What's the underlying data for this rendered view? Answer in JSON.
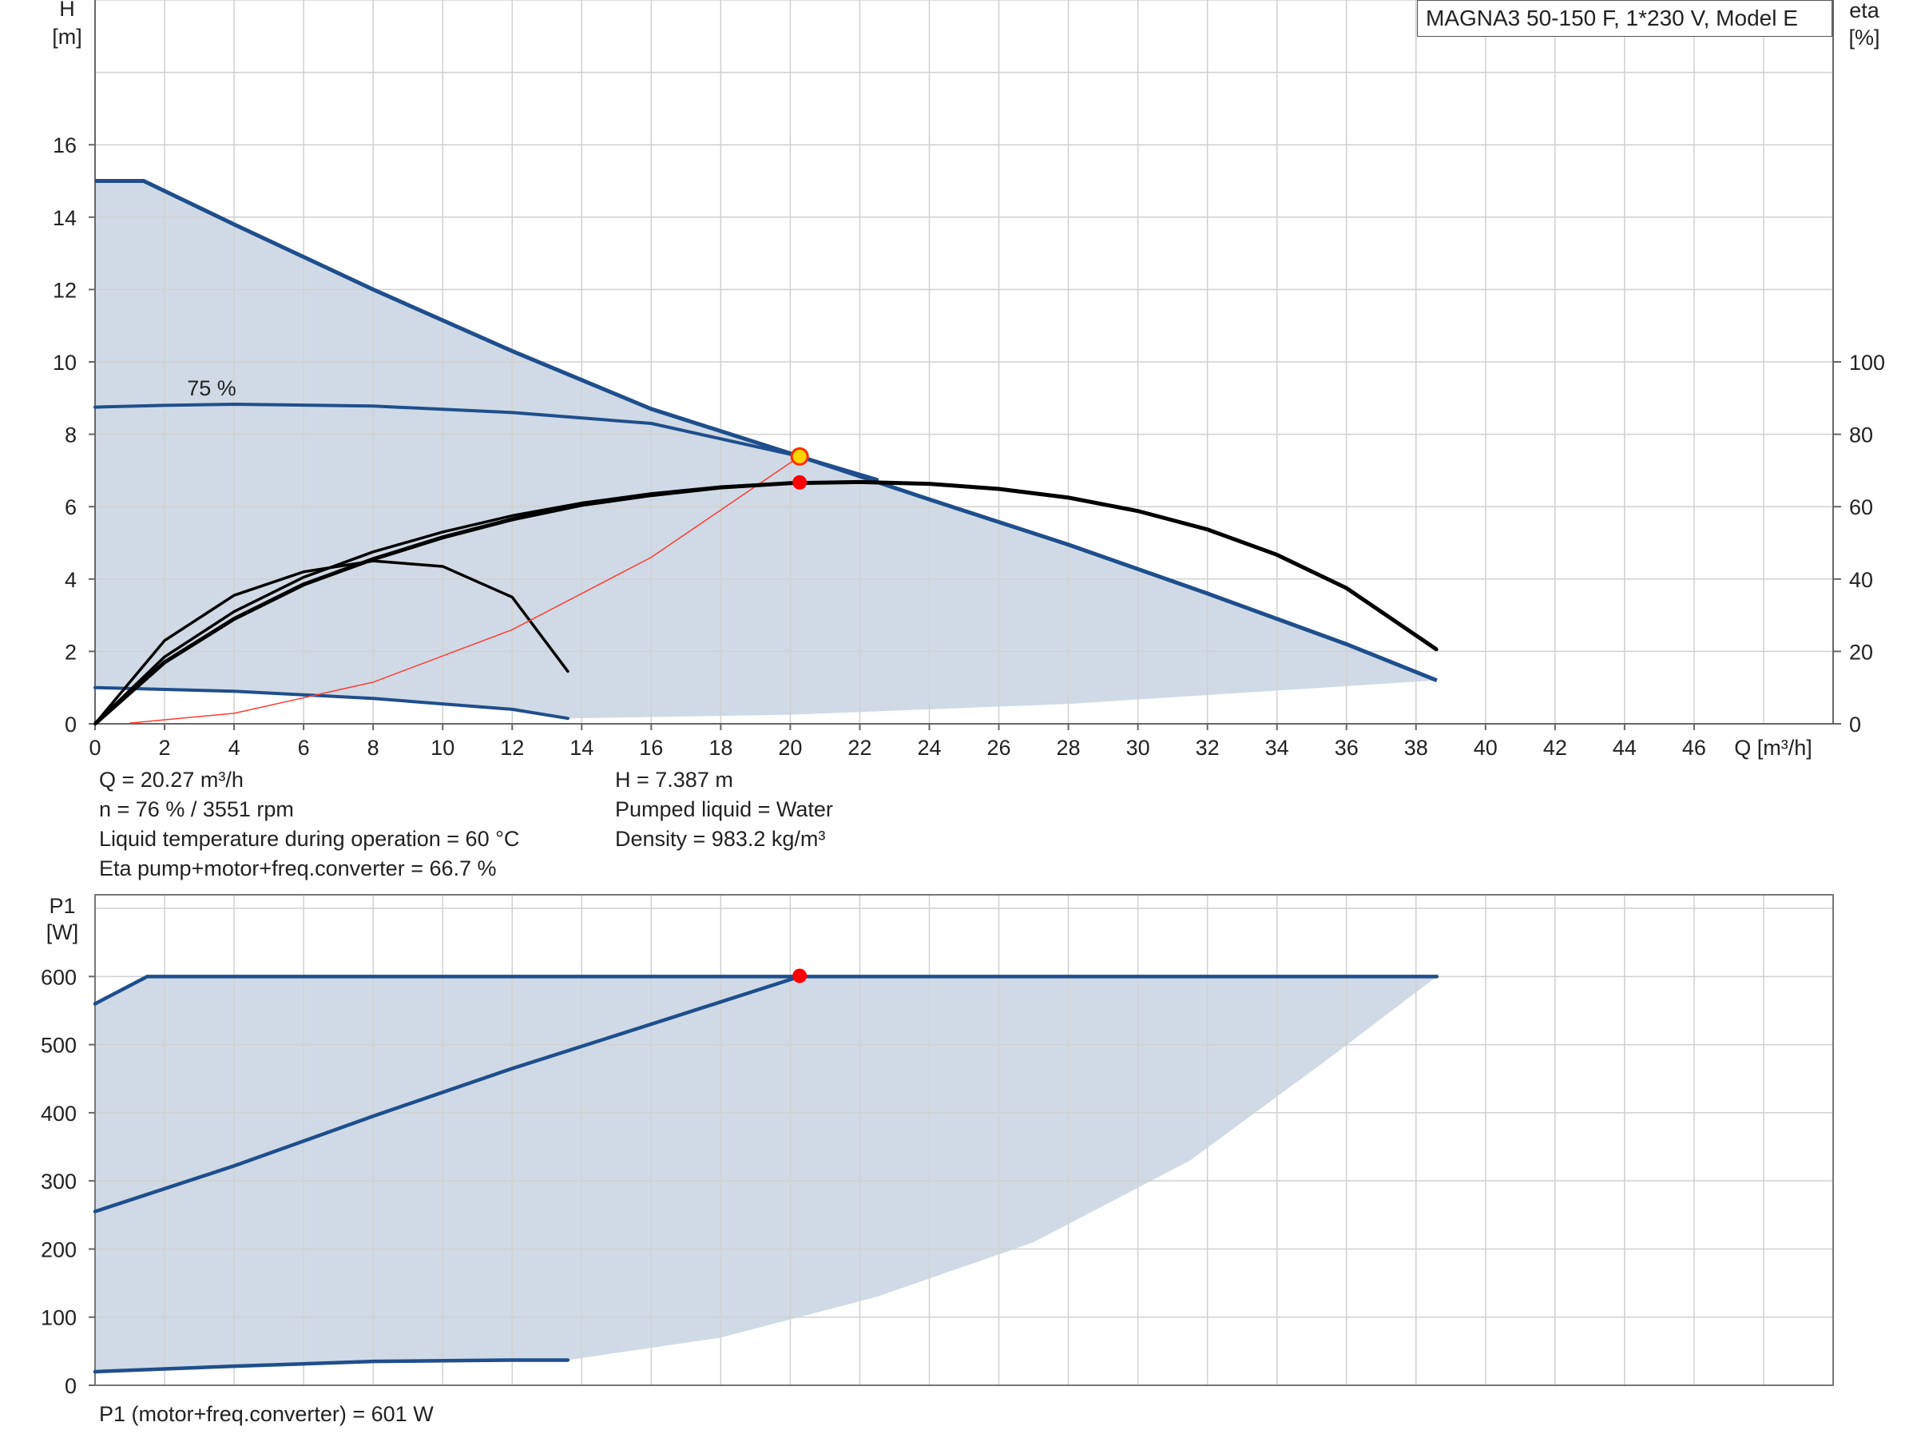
{
  "chart_data": [
    {
      "type": "line",
      "title": "MAGNA3 50-150 F, 1*230 V, Model E",
      "xlabel": "Q [m³/h]",
      "ylabel_top": "H",
      "ylabel_bottom": "[m]",
      "y2label_top": "eta",
      "y2label_bottom": "[%]",
      "xlim": [
        0,
        50
      ],
      "ylim": [
        0,
        20
      ],
      "y2lim": [
        0,
        100
      ],
      "xticks": [
        0,
        2,
        4,
        6,
        8,
        10,
        12,
        14,
        16,
        18,
        20,
        22,
        24,
        26,
        28,
        30,
        32,
        34,
        36,
        38,
        40,
        42,
        44,
        46
      ],
      "yticks": [
        0,
        2,
        4,
        6,
        8,
        10,
        12,
        14,
        16
      ],
      "y2ticks": [
        0,
        20,
        40,
        60,
        80,
        100
      ],
      "grid": true,
      "speed_label": "75 %",
      "envelope": {
        "upper": [
          [
            0,
            15
          ],
          [
            1.4,
            15
          ],
          [
            4,
            13.8
          ],
          [
            8,
            12
          ],
          [
            12,
            10.3
          ],
          [
            16,
            8.7
          ],
          [
            20.27,
            7.39
          ],
          [
            24,
            6.2
          ],
          [
            28,
            4.95
          ],
          [
            32,
            3.6
          ],
          [
            36,
            2.2
          ],
          [
            38.6,
            1.2
          ]
        ],
        "lower": [
          [
            0,
            1.0
          ],
          [
            4,
            0.9
          ],
          [
            8,
            0.7
          ],
          [
            12,
            0.4
          ],
          [
            13.6,
            0.15
          ],
          [
            20,
            0.25
          ],
          [
            28,
            0.55
          ],
          [
            38.6,
            1.2
          ]
        ]
      },
      "series": [
        {
          "name": "75 %",
          "color": "#1f4e8c",
          "role": "head",
          "points": [
            [
              0,
              8.75
            ],
            [
              2,
              8.8
            ],
            [
              4,
              8.83
            ],
            [
              8,
              8.78
            ],
            [
              12,
              8.6
            ],
            [
              16,
              8.3
            ],
            [
              20.27,
              7.39
            ],
            [
              22.5,
              6.75
            ]
          ]
        },
        {
          "color": "#1f4e8c",
          "role": "head",
          "points": [
            [
              0,
              1.0
            ],
            [
              4,
              0.9
            ],
            [
              8,
              0.7
            ],
            [
              12,
              0.4
            ],
            [
              13.6,
              0.15
            ]
          ]
        },
        {
          "color": "#000000",
          "role": "eta",
          "points": [
            [
              0,
              0
            ],
            [
              2,
              17
            ],
            [
              4,
              29
            ],
            [
              6,
              38.5
            ],
            [
              8,
              45.5
            ],
            [
              10,
              51.5
            ],
            [
              12,
              56.5
            ],
            [
              14,
              60.5
            ],
            [
              16,
              63.2
            ],
            [
              18,
              65.3
            ],
            [
              20,
              66.5
            ],
            [
              22,
              66.8
            ],
            [
              24,
              66.3
            ],
            [
              26,
              64.9
            ],
            [
              28,
              62.5
            ],
            [
              30,
              58.8
            ],
            [
              32,
              53.7
            ],
            [
              34,
              46.7
            ],
            [
              36,
              37.5
            ],
            [
              38.6,
              20.5
            ]
          ]
        },
        {
          "color": "#000000",
          "role": "eta",
          "points": [
            [
              0,
              0
            ],
            [
              2,
              18.5
            ],
            [
              4,
              31
            ],
            [
              6,
              40.5
            ],
            [
              8,
              47.5
            ],
            [
              10,
              53
            ],
            [
              12,
              57.5
            ],
            [
              14,
              61
            ],
            [
              16,
              63.6
            ],
            [
              18,
              65.5
            ],
            [
              20.27,
              66.7
            ]
          ]
        },
        {
          "color": "#000000",
          "role": "eta",
          "points": [
            [
              0,
              0
            ],
            [
              2,
              23
            ],
            [
              4,
              35.5
            ],
            [
              6,
              42
            ],
            [
              8,
              45
            ],
            [
              10,
              43.5
            ],
            [
              12,
              35
            ],
            [
              13.6,
              14.5
            ]
          ]
        },
        {
          "color": "#ff3b30",
          "role": "system",
          "points": [
            [
              1,
              0.02
            ],
            [
              4,
              0.29
            ],
            [
              8,
              1.15
            ],
            [
              12,
              2.6
            ],
            [
              16,
              4.6
            ],
            [
              20.27,
              7.39
            ]
          ]
        }
      ],
      "duty_point": {
        "q": 20.27,
        "h": 7.387,
        "eta": 66.7
      }
    },
    {
      "type": "line",
      "ylabel_top": "P1",
      "ylabel_bottom": "[W]",
      "xlim": [
        0,
        50
      ],
      "ylim": [
        0,
        720
      ],
      "yticks": [
        0,
        100,
        200,
        300,
        400,
        500,
        600
      ],
      "grid": true,
      "envelope": {
        "upper": [
          [
            0,
            560
          ],
          [
            1.5,
            600
          ],
          [
            38.6,
            600
          ]
        ],
        "lower": [
          [
            0,
            20
          ],
          [
            4,
            28
          ],
          [
            8,
            35
          ],
          [
            12,
            37
          ],
          [
            13.6,
            37
          ],
          [
            18,
            70
          ],
          [
            22.5,
            130
          ],
          [
            27,
            210
          ],
          [
            31.5,
            330
          ],
          [
            35.5,
            480
          ],
          [
            38.6,
            600
          ]
        ]
      },
      "series": [
        {
          "color": "#1f4e8c",
          "role": "power",
          "points": [
            [
              0,
              560
            ],
            [
              1.5,
              600
            ],
            [
              38.6,
              600
            ]
          ]
        },
        {
          "color": "#1f4e8c",
          "role": "power",
          "points": [
            [
              0,
              255
            ],
            [
              4,
              322
            ],
            [
              8,
              395
            ],
            [
              12,
              465
            ],
            [
              16,
              530
            ],
            [
              20.27,
              600
            ]
          ]
        },
        {
          "color": "#1f4e8c",
          "role": "power",
          "points": [
            [
              0,
              20
            ],
            [
              4,
              28
            ],
            [
              8,
              35
            ],
            [
              12,
              37
            ],
            [
              13.6,
              37
            ]
          ]
        }
      ],
      "duty_point": {
        "q": 20.27,
        "p": 601
      }
    }
  ],
  "info": {
    "q": "Q = 20.27 m³/h",
    "n": "n = 76 % / 3551 rpm",
    "temp": "Liquid temperature during operation = 60 °C",
    "eta": "Eta pump+motor+freq.converter = 66.7 %",
    "h": "H = 7.387 m",
    "liquid": "Pumped liquid = Water",
    "density": "Density = 983.2 kg/m³",
    "p1": "P1 (motor+freq.converter) = 601 W"
  },
  "colors": {
    "envelope_fill": "#cfdae6",
    "curve_blue": "#1f4e8c",
    "eta_black": "#000000",
    "system_red": "#ff3b30",
    "duty_point_red": "#ff0000",
    "duty_point_yellow": "#ffd400",
    "grid": "#d0d0d0"
  }
}
